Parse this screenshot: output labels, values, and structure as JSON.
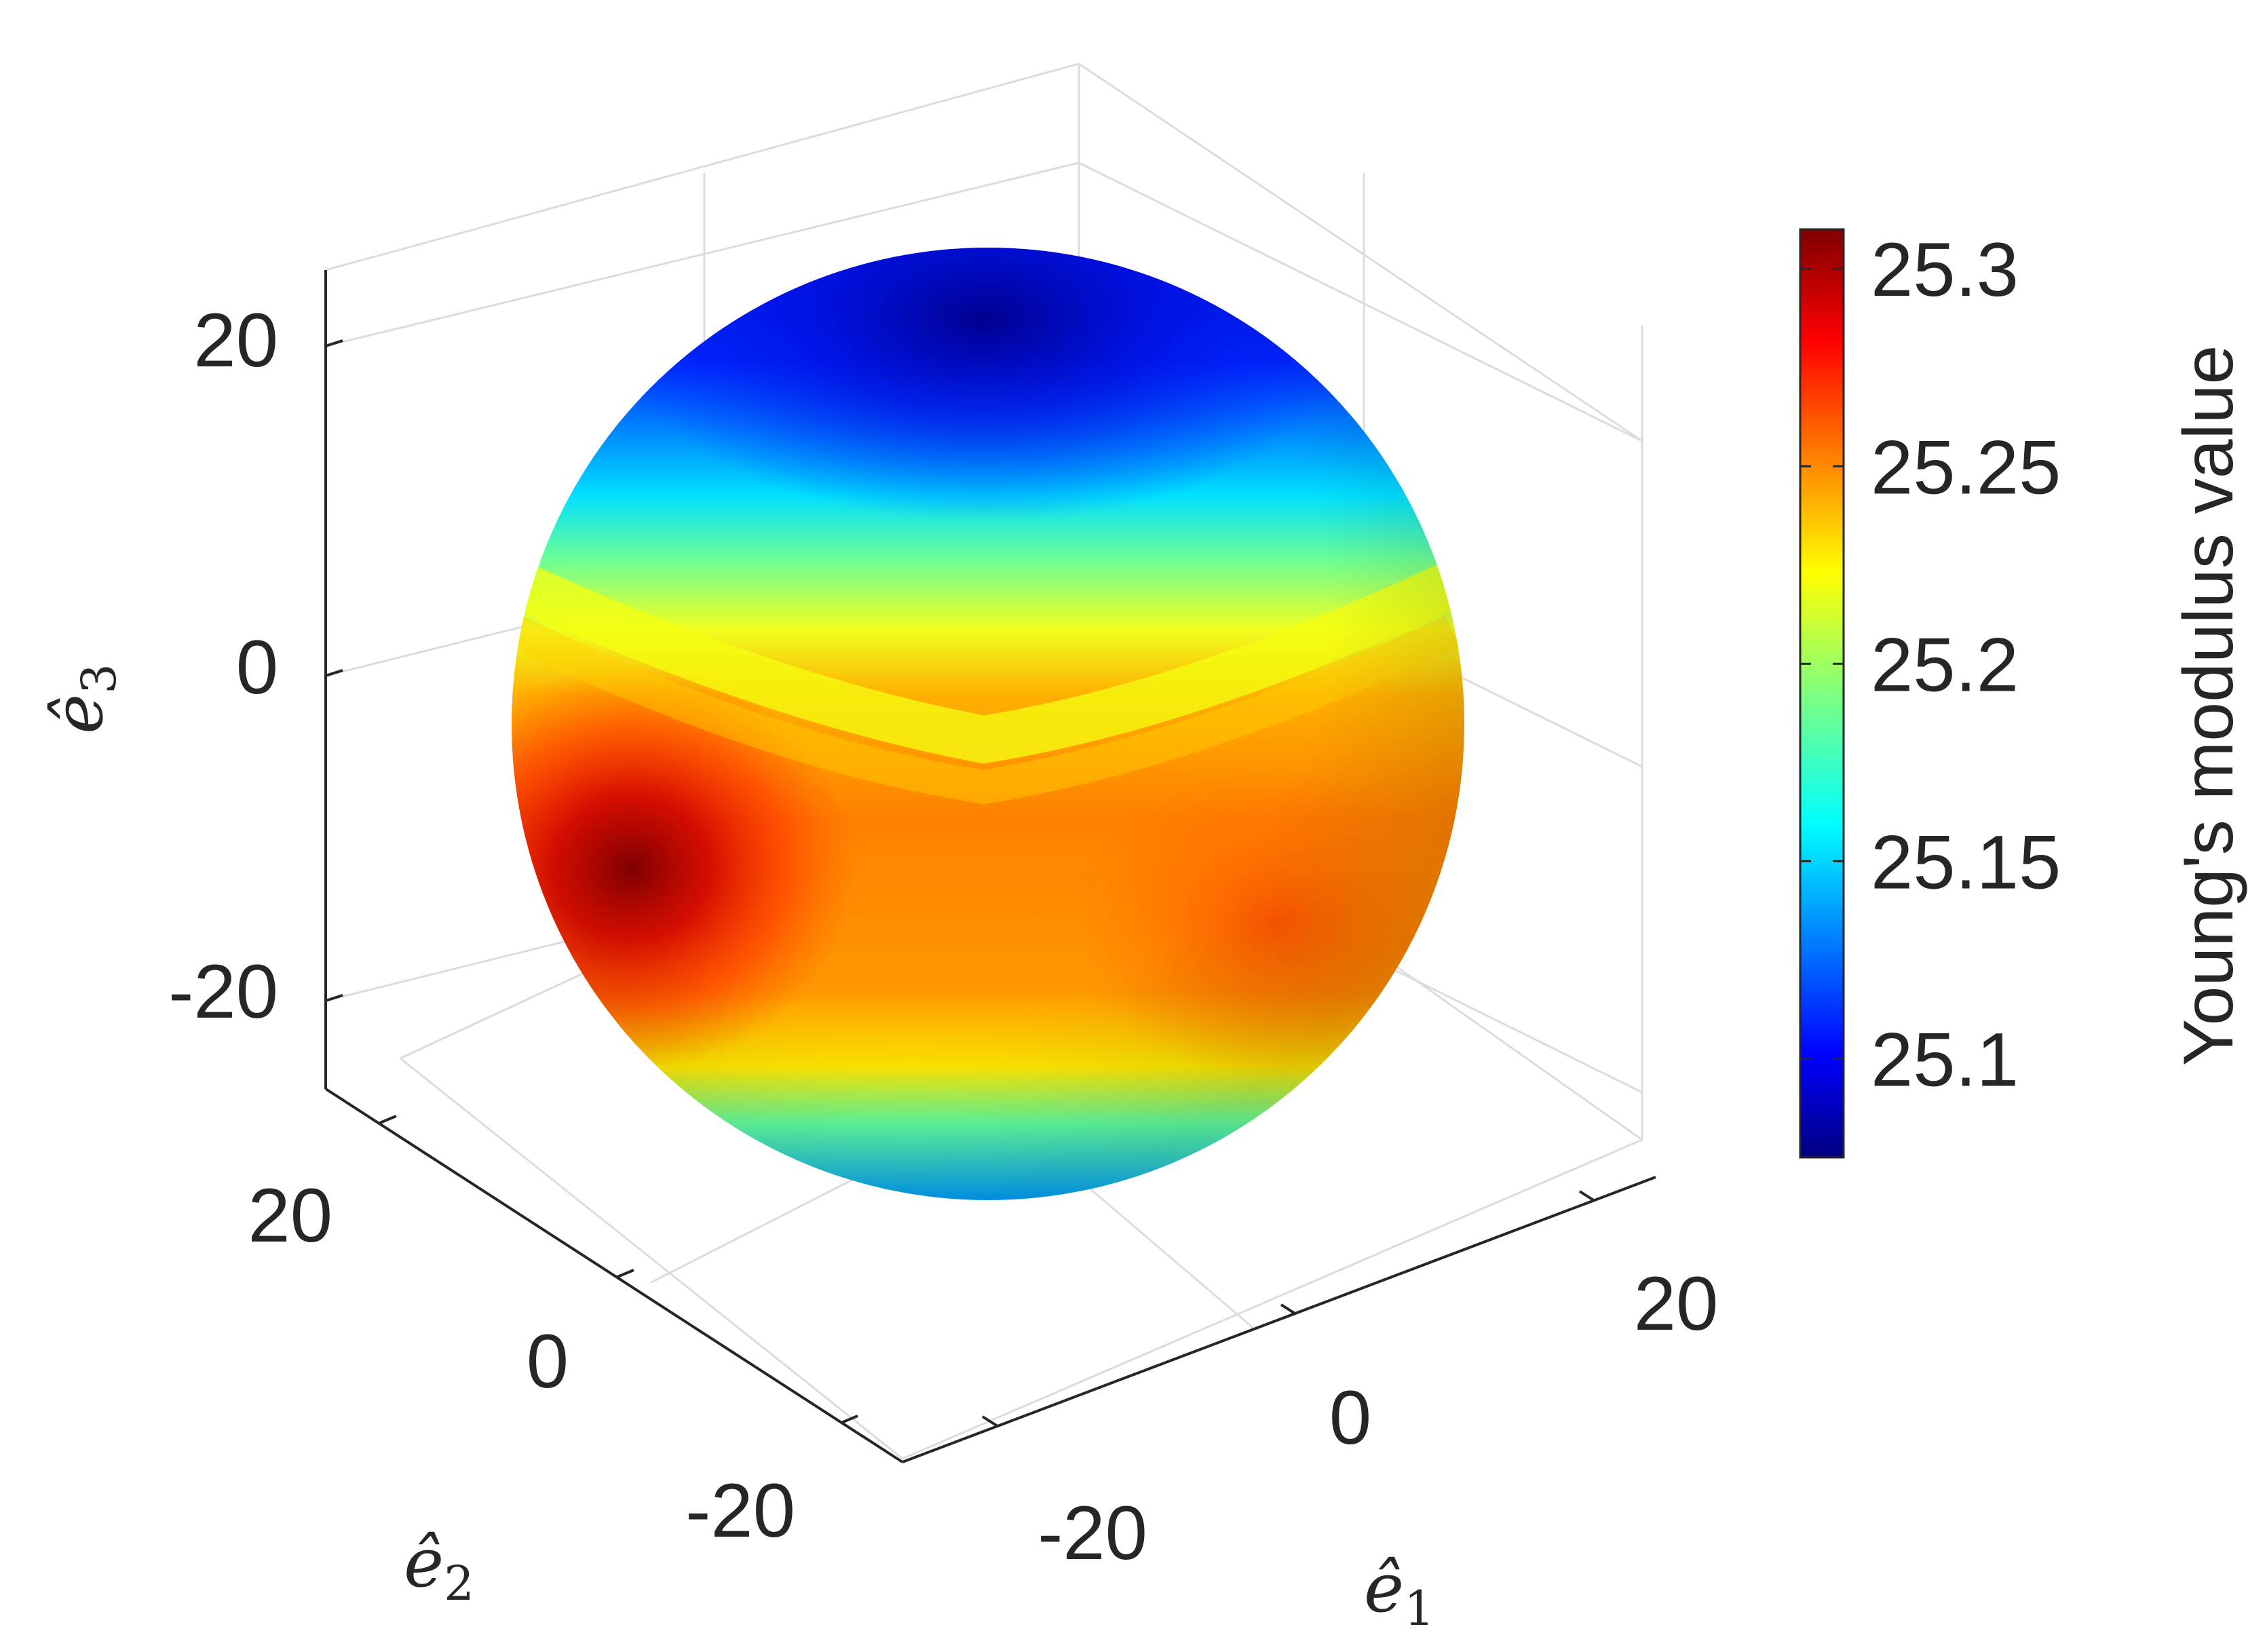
{
  "chart_data": {
    "type": "3d-surface",
    "axes": {
      "x": {
        "label": "ê",
        "label_subscript": "1",
        "ticks": [
          "-20",
          "0",
          "20"
        ],
        "tick_values": [
          -20,
          0,
          20
        ],
        "lim": [
          -28,
          28
        ]
      },
      "y": {
        "label": "ê",
        "label_subscript": "2",
        "ticks": [
          "-20",
          "0",
          "20"
        ],
        "tick_values": [
          -20,
          0,
          20
        ],
        "lim": [
          -28,
          28
        ]
      },
      "z": {
        "label": "ê",
        "label_subscript": "3",
        "ticks": [
          "20",
          "0",
          "-20"
        ],
        "tick_values": [
          20,
          0,
          -20
        ],
        "lim": [
          -28,
          28
        ]
      }
    },
    "surface": {
      "shape": "sphere",
      "radius": 25.2,
      "colormap": "jet"
    },
    "colorbar": {
      "label": "Young's modulus value",
      "ticks": [
        "25.3",
        "25.25",
        "25.2",
        "25.15",
        "25.1"
      ],
      "tick_values": [
        25.3,
        25.25,
        25.2,
        25.15,
        25.1
      ],
      "range": [
        25.075,
        25.31
      ]
    },
    "grid": true
  }
}
